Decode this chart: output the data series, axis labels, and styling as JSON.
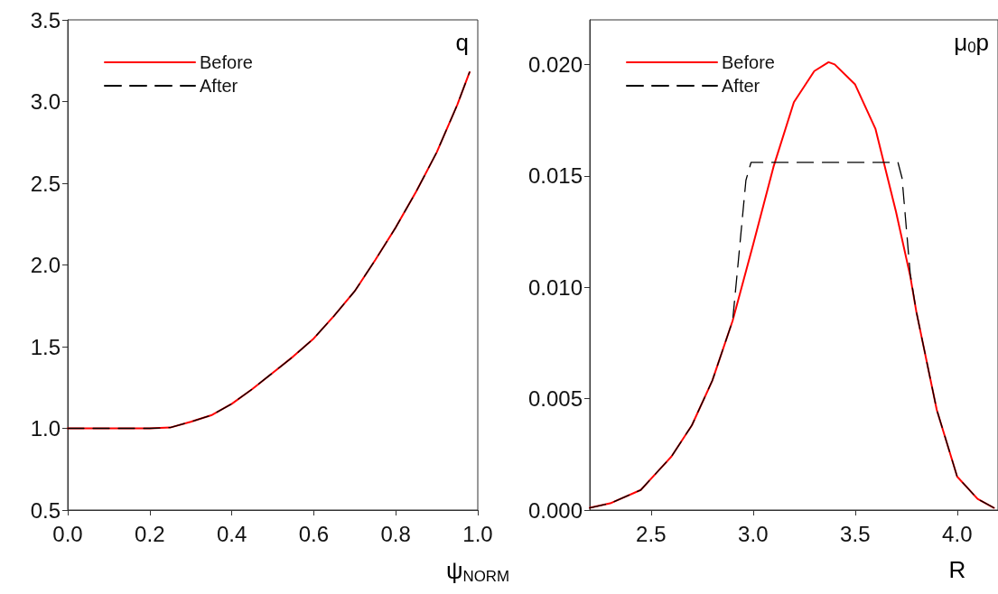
{
  "chart_data": [
    {
      "type": "line",
      "xlabel": "ψ$_{NORM}$",
      "ylabel": "q",
      "legend": "top left",
      "marker": "none",
      "grid": false,
      "xlim": [
        0,
        1
      ],
      "xticks": [
        {
          "value": 0,
          "label": "0.0"
        },
        {
          "value": 0.2,
          "label": "0.2"
        },
        {
          "value": 0.4,
          "label": "0.4"
        },
        {
          "value": 0.6,
          "label": "0.6"
        },
        {
          "value": 0.8,
          "label": "0.8"
        },
        {
          "value": 1,
          "label": "1.0"
        }
      ],
      "ylim": [
        0.5,
        3.5
      ],
      "yticks": [
        0.5,
        {
          "value": 1,
          "label": "1.0"
        },
        1.5,
        {
          "value": 2,
          "label": "2.0"
        },
        2.5,
        {
          "value": 3,
          "label": "3.0"
        },
        3.5
      ],
      "series": [
        {
          "name": "Before",
          "color": "#ff0000",
          "line_style": "solid",
          "x": [
            0,
            0.1,
            0.2,
            0.25,
            0.3,
            0.35,
            0.4,
            0.45,
            0.5,
            0.55,
            0.6,
            0.65,
            0.7,
            0.75,
            0.8,
            0.85,
            0.9,
            0.95,
            0.98
          ],
          "values": [
            1,
            1,
            1,
            1.005,
            1.04,
            1.08,
            1.15,
            1.24,
            1.34,
            1.44,
            1.55,
            1.69,
            1.84,
            2.03,
            2.23,
            2.45,
            2.69,
            2.98,
            3.18
          ]
        },
        {
          "name": "After",
          "color": "#000000",
          "line_style": "dashed",
          "x": [
            0,
            0.1,
            0.2,
            0.25,
            0.3,
            0.35,
            0.4,
            0.45,
            0.5,
            0.55,
            0.6,
            0.65,
            0.7,
            0.75,
            0.8,
            0.85,
            0.9,
            0.95,
            0.98
          ],
          "values": [
            1,
            1,
            1,
            1.005,
            1.04,
            1.08,
            1.15,
            1.24,
            1.34,
            1.44,
            1.55,
            1.69,
            1.84,
            2.03,
            2.23,
            2.45,
            2.69,
            2.98,
            3.18
          ]
        }
      ]
    },
    {
      "type": "line",
      "xlabel": "R",
      "ylabel": "μ$_{0}$p",
      "legend": "top left",
      "marker": "none",
      "grid": false,
      "xlim": [
        2.2,
        4.2
      ],
      "xticks": [
        2.5,
        {
          "value": 3,
          "label": "3.0"
        },
        3.5,
        {
          "value": 4,
          "label": "4.0"
        }
      ],
      "ylim": [
        0,
        0.022
      ],
      "yticks": [
        {
          "value": 0,
          "label": "0.000"
        },
        0.005,
        {
          "value": 0.01,
          "label": "0.010"
        },
        0.015,
        {
          "value": 0.02,
          "label": "0.020"
        }
      ],
      "series": [
        {
          "name": "Before",
          "color": "#ff0000",
          "line_style": "solid",
          "x": [
            2.2,
            2.3,
            2.45,
            2.5,
            2.6,
            2.7,
            2.8,
            2.9,
            3.0,
            3.1,
            3.2,
            3.3,
            3.37,
            3.4,
            3.5,
            3.6,
            3.7,
            3.77,
            3.8,
            3.9,
            4.0,
            4.1,
            4.18
          ],
          "values": [
            0.0001,
            0.0003,
            0.0009,
            0.0014,
            0.0024,
            0.0038,
            0.0058,
            0.0085,
            0.0119,
            0.0154,
            0.0183,
            0.0197,
            0.0201,
            0.02,
            0.0191,
            0.0171,
            0.0134,
            0.0105,
            0.0089,
            0.0045,
            0.0015,
            0.0005,
            0.0001
          ]
        },
        {
          "name": "After",
          "color": "#000000",
          "line_style": "dashed",
          "x": [
            2.2,
            2.3,
            2.45,
            2.5,
            2.6,
            2.7,
            2.8,
            2.9,
            2.925,
            2.965,
            2.99,
            3.71,
            3.73,
            3.77,
            3.8,
            3.9,
            4.0,
            4.1,
            4.18
          ],
          "values": [
            0.0001,
            0.0003,
            0.0009,
            0.0014,
            0.0024,
            0.0038,
            0.0058,
            0.0085,
            0.0109,
            0.0148,
            0.0156,
            0.0156,
            0.0149,
            0.0106,
            0.0089,
            0.0045,
            0.0015,
            0.0005,
            0.0001
          ]
        }
      ]
    }
  ]
}
